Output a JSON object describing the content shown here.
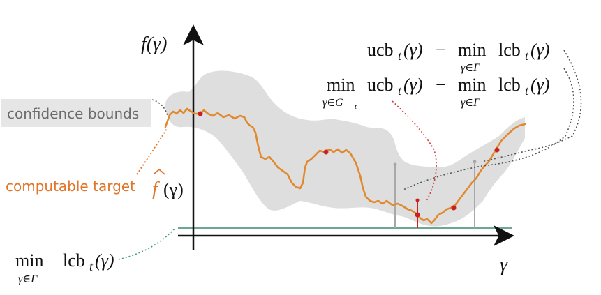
{
  "axes": {
    "y_label": "f(γ)",
    "x_label": "γ"
  },
  "labels": {
    "confidence_bounds": "confidence bounds",
    "computable_target": "computable target",
    "fhat": "f",
    "fhat_arg": "(γ)",
    "min_word": "min",
    "sub_gamma_Gamma": "γ∈Γ",
    "sub_gamma_Gt": "γ∈G",
    "sub_t": "t",
    "ucb": "ucb",
    "lcb": "lcb",
    "t": "t",
    "arg": "(γ)",
    "minus": "−"
  },
  "colors": {
    "band": "#dedede",
    "curve": "#e0892e",
    "points": "#cc1f1f",
    "baseline": "#3d8a6e",
    "conf_label_bg": "#e6e6e6",
    "target_label": "#e0762a",
    "dotted_red": "#d23c3c",
    "dotted_gray": "#555555",
    "dotted_green": "#3d9a78",
    "dotted_orange": "#e0762a"
  }
}
